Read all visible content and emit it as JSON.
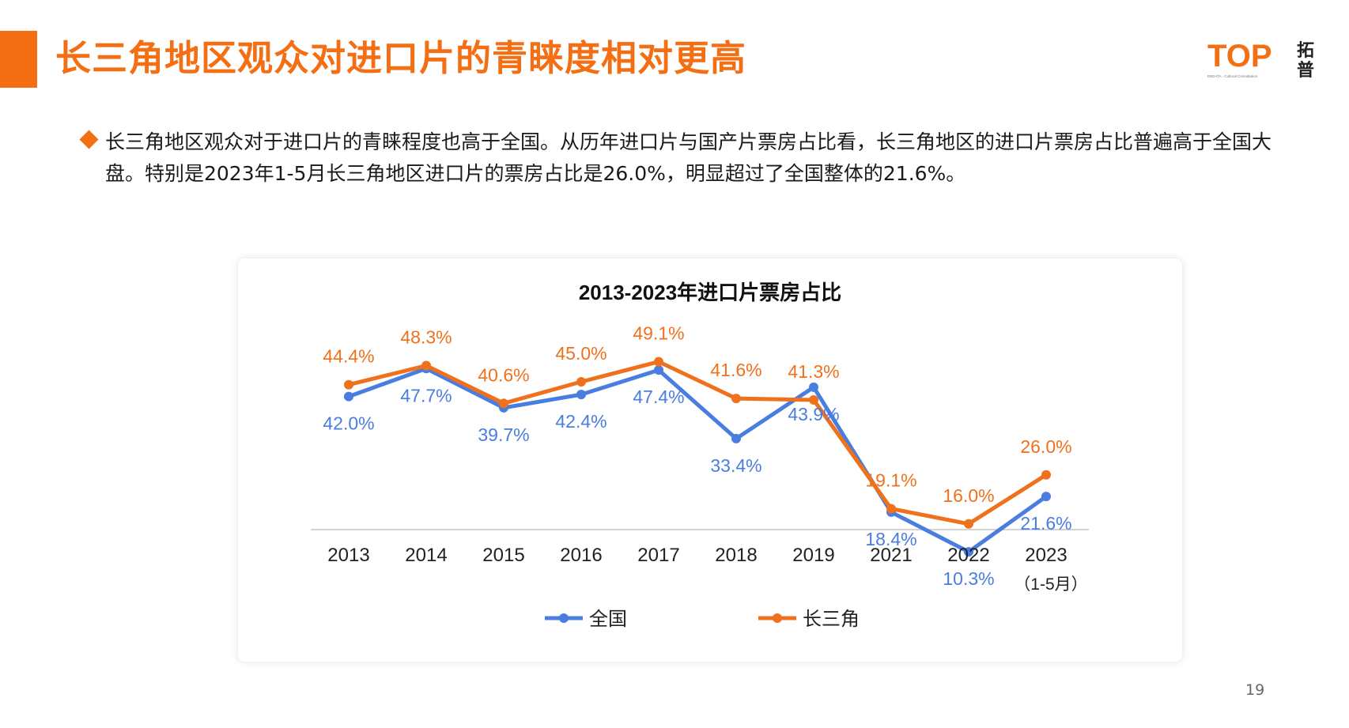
{
  "page": {
    "title": "长三角地区观众对进口片的青睐度相对更高",
    "bullet": "长三角地区观众对于进口片的青睐程度也高于全国。从历年进口片与国产片票房占比看，长三角地区的进口片票房占比普遍高于全国大盘。特别是2023年1-5月长三角地区进口片的票房占比是26.0%，明显超过了全国整体的21.6%。",
    "page_number": "19",
    "logo": {
      "text": "TOP",
      "side_text": "拓普",
      "tagline": "ENDATA · Cultural Consultation"
    },
    "accent_color": "#f46f14"
  },
  "chart_data": {
    "type": "line",
    "title": "2013-2023年进口片票房占比",
    "categories": [
      "2013",
      "2014",
      "2015",
      "2016",
      "2017",
      "2018",
      "2019",
      "2021",
      "2022",
      "2023"
    ],
    "category_sublabels": [
      "",
      "",
      "",
      "",
      "",
      "",
      "",
      "",
      "",
      "（1-5月）"
    ],
    "series": [
      {
        "name": "全国",
        "color": "#4a7de0",
        "values": [
          42.0,
          47.7,
          39.7,
          42.4,
          47.4,
          33.4,
          43.9,
          18.4,
          10.3,
          21.6
        ],
        "labels": [
          "42.0%",
          "47.7%",
          "39.7%",
          "42.4%",
          "47.4%",
          "33.4%",
          "43.9%",
          "18.4%",
          "10.3%",
          "21.6%"
        ]
      },
      {
        "name": "长三角",
        "color": "#f0711c",
        "values": [
          44.4,
          48.3,
          40.6,
          45.0,
          49.1,
          41.6,
          41.3,
          19.1,
          16.0,
          26.0
        ],
        "labels": [
          "44.4%",
          "48.3%",
          "40.6%",
          "45.0%",
          "49.1%",
          "41.6%",
          "41.3%",
          "19.1%",
          "16.0%",
          "26.0%"
        ]
      }
    ],
    "ylim": [
      0,
      60
    ],
    "grid": false,
    "legend_position": "bottom"
  }
}
